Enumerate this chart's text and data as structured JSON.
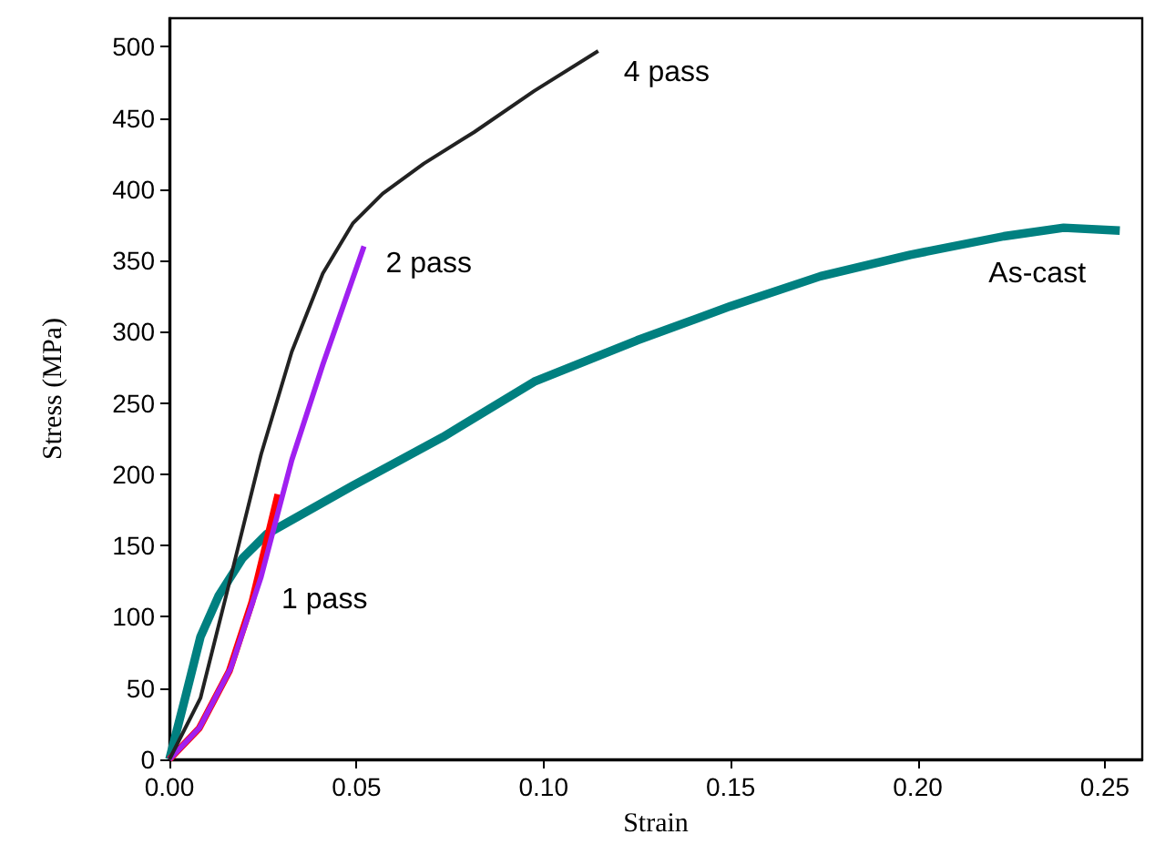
{
  "chart_data": {
    "type": "line",
    "xlabel": "Strain",
    "ylabel": "Stress (MPa)",
    "xlim": [
      0,
      0.26
    ],
    "ylim": [
      0,
      520
    ],
    "xticks": [
      {
        "value": 0,
        "label": "0.00"
      },
      {
        "value": 0.05,
        "label": "0.05"
      },
      {
        "value": 0.1,
        "label": "0.10"
      },
      {
        "value": 0.15,
        "label": "0.15"
      },
      {
        "value": 0.2,
        "label": "0.20"
      },
      {
        "value": 0.25,
        "label": "0.25"
      }
    ],
    "yticks": [
      0,
      50,
      100,
      150,
      200,
      250,
      300,
      350,
      400,
      450,
      500
    ],
    "grid": false,
    "marker": "none",
    "line_style": "solid",
    "series": [
      {
        "name": "As-cast",
        "color": "#008080",
        "x": [
          0,
          0.0042,
          0.0083,
          0.0132,
          0.0195,
          0.026,
          0.049,
          0.073,
          0.0975,
          0.125,
          0.15,
          0.174,
          0.198,
          0.223,
          0.239,
          0.254
        ],
        "values": [
          0,
          43,
          86,
          115,
          141,
          158,
          192,
          226,
          265,
          294,
          318,
          339,
          354,
          367,
          373,
          371
        ]
      },
      {
        "name": "1 pass",
        "color": "#ff0000",
        "x": [
          0,
          0.008,
          0.016,
          0.022,
          0.029
        ],
        "values": [
          0,
          22,
          62,
          110,
          186
        ]
      },
      {
        "name": "2 pass",
        "color": "#a020f0",
        "x": [
          0,
          0.008,
          0.0164,
          0.0245,
          0.0327,
          0.041,
          0.052
        ],
        "values": [
          0,
          22,
          64,
          128,
          210,
          277,
          360
        ]
      },
      {
        "name": "4 pass",
        "color": "#222222",
        "x": [
          0,
          0.0083,
          0.0164,
          0.0245,
          0.0327,
          0.041,
          0.049,
          0.057,
          0.068,
          0.0814,
          0.0975,
          0.1146
        ],
        "values": [
          0,
          43,
          128,
          214,
          286,
          341,
          376,
          397,
          418,
          440,
          469,
          497
        ]
      }
    ]
  }
}
